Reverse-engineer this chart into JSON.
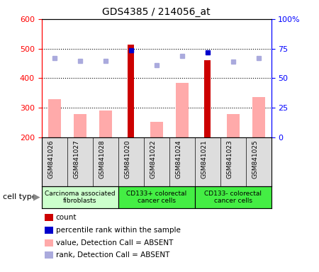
{
  "title": "GDS4385 / 214056_at",
  "samples": [
    "GSM841026",
    "GSM841027",
    "GSM841028",
    "GSM841020",
    "GSM841022",
    "GSM841024",
    "GSM841021",
    "GSM841023",
    "GSM841025"
  ],
  "group_labels": [
    "Carcinoma associated\nfibroblasts",
    "CD133+ colorectal\ncancer cells",
    "CD133- colorectal\ncancer cells"
  ],
  "group_ranges": [
    [
      0,
      3
    ],
    [
      3,
      6
    ],
    [
      6,
      9
    ]
  ],
  "group_colors": [
    "#ccffcc",
    "#44ee44",
    "#44ee44"
  ],
  "value_absent": [
    330,
    278,
    292,
    null,
    253,
    385,
    null,
    280,
    337
  ],
  "count_values": [
    null,
    null,
    null,
    513,
    null,
    null,
    462,
    null,
    null
  ],
  "rank_absent": [
    468,
    458,
    458,
    null,
    443,
    476,
    null,
    455,
    468
  ],
  "percentile_rank": [
    null,
    null,
    null,
    495,
    null,
    null,
    487,
    null,
    null
  ],
  "ylim_left": [
    200,
    600
  ],
  "yticks_left": [
    200,
    300,
    400,
    500,
    600
  ],
  "yticks_right": [
    0,
    25,
    50,
    75,
    100
  ],
  "ytick_labels_right": [
    "0",
    "25",
    "50",
    "75",
    "100%"
  ],
  "color_count": "#cc0000",
  "color_percentile": "#0000cc",
  "color_value_absent": "#ffaaaa",
  "color_rank_absent": "#aaaadd",
  "legend_items": [
    {
      "color": "#cc0000",
      "label": "count"
    },
    {
      "color": "#0000cc",
      "label": "percentile rank within the sample"
    },
    {
      "color": "#ffaaaa",
      "label": "value, Detection Call = ABSENT"
    },
    {
      "color": "#aaaadd",
      "label": "rank, Detection Call = ABSENT"
    }
  ]
}
